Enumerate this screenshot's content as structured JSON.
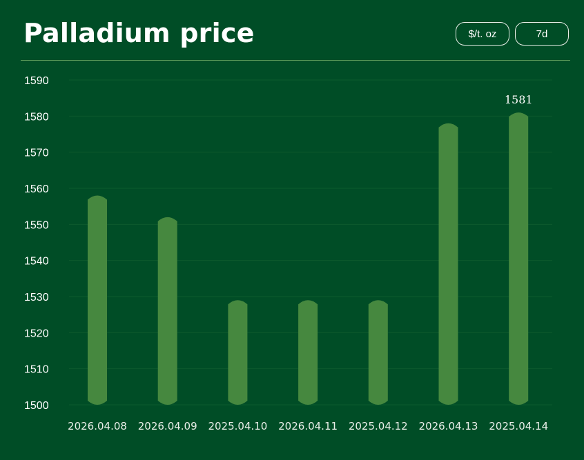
{
  "header": {
    "title": "Palladium price",
    "unit_button": "$/t. oz",
    "range_button": "7d"
  },
  "colors": {
    "background": "#004d26",
    "bar": "#46883f",
    "grid": "#0d5a2e",
    "divider": "#5c9b5a"
  },
  "chart_data": {
    "type": "bar",
    "title": "Palladium price",
    "xlabel": "",
    "ylabel": "",
    "categories": [
      "2026.04.08",
      "2026.04.09",
      "2025.04.10",
      "2026.04.11",
      "2025.04.12",
      "2026.04.13",
      "2025.04.14"
    ],
    "values": [
      1558,
      1552,
      1529,
      1529,
      1529,
      1578,
      1581
    ],
    "ylim": [
      1500,
      1590
    ],
    "yticks": [
      1590,
      1580,
      1570,
      1560,
      1550,
      1540,
      1530,
      1520,
      1510,
      1500
    ],
    "data_labels": [
      {
        "category": "2025.04.14",
        "text": "1581"
      }
    ],
    "grid": true,
    "legend": "none"
  }
}
